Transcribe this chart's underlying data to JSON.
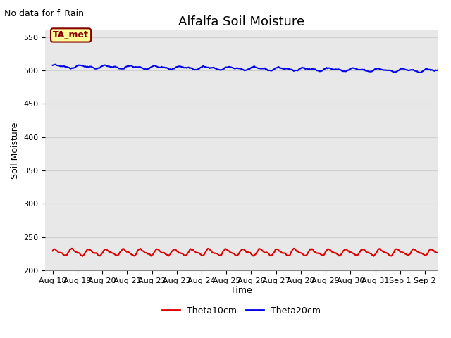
{
  "title": "Alfalfa Soil Moisture",
  "no_data_text": "No data for f_Rain",
  "ta_met_label": "TA_met",
  "ylabel": "Soil Moisture",
  "xlabel": "Time",
  "ylim": [
    200,
    560
  ],
  "yticks": [
    200,
    250,
    300,
    350,
    400,
    450,
    500,
    550
  ],
  "x_tick_labels": [
    "Aug 18",
    "Aug 19",
    "Aug 20",
    "Aug 21",
    "Aug 22",
    "Aug 23",
    "Aug 24",
    "Aug 25",
    "Aug 26",
    "Aug 27",
    "Aug 28",
    "Aug 29",
    "Aug 30",
    "Aug 31",
    "Sep 1",
    "Sep 2"
  ],
  "x_tick_positions": [
    0,
    1,
    2,
    3,
    4,
    5,
    6,
    7,
    8,
    9,
    10,
    11,
    12,
    13,
    14,
    15
  ],
  "xlim_days": [
    -0.3,
    15.5
  ],
  "blue_line_base": 506,
  "blue_line_trend": -0.42,
  "blue_amplitude": 1.8,
  "blue_noise": 0.4,
  "red_line_base": 227,
  "red_amplitude": 4.0,
  "red_frequency": 1.45,
  "red_noise": 0.5,
  "background_color": "#e8e8e8",
  "figure_color": "#ffffff",
  "blue_color": "#0000ee",
  "red_color": "#dd0000",
  "legend_line_colors": [
    "#dd0000",
    "#0000ee"
  ],
  "legend_labels": [
    "Theta10cm",
    "Theta20cm"
  ],
  "grid_color": "#d0d0d0",
  "ta_met_bg": "#ffff99",
  "ta_met_border": "#880000",
  "title_fontsize": 13,
  "axis_label_fontsize": 9,
  "tick_fontsize": 8,
  "no_data_fontsize": 9
}
